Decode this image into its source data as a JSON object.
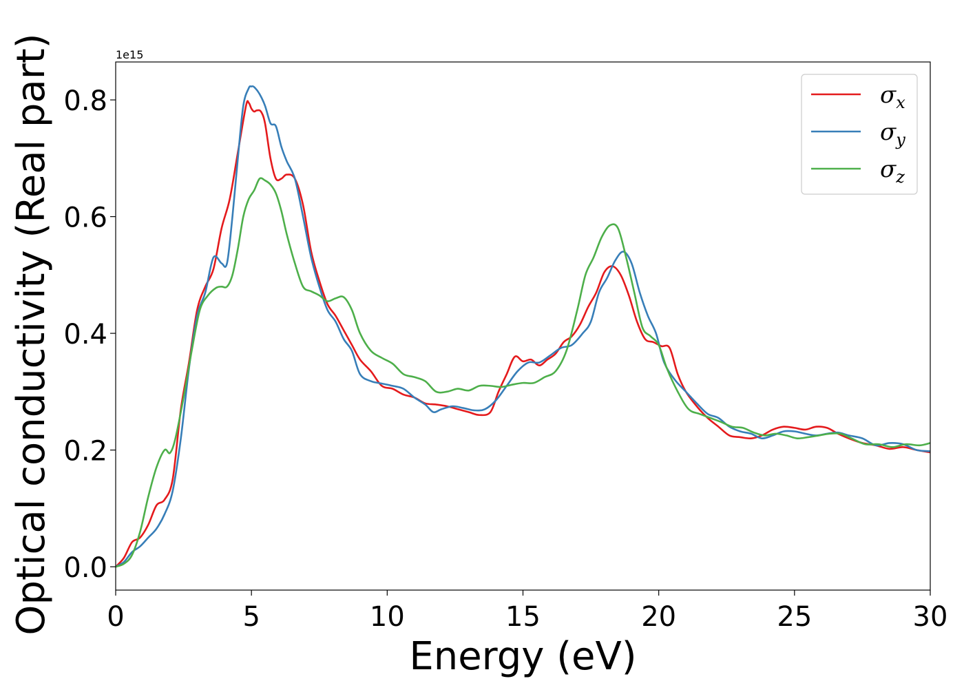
{
  "chart_data": {
    "type": "line",
    "xlabel": "Energy (eV)",
    "ylabel": "Optical conductivity (Real part)",
    "y_offset_text": "1e15",
    "xlim": [
      0,
      30
    ],
    "ylim": [
      -0.04,
      0.865
    ],
    "xticks": [
      0,
      5,
      10,
      15,
      20,
      25,
      30
    ],
    "xtick_labels": [
      "0",
      "5",
      "10",
      "15",
      "20",
      "25",
      "30"
    ],
    "yticks": [
      0.0,
      0.2,
      0.4,
      0.6,
      0.8
    ],
    "ytick_labels": [
      "0.0",
      "0.2",
      "0.4",
      "0.6",
      "0.8"
    ],
    "grid": false,
    "legend_position": "top-right",
    "series": [
      {
        "name": "σx",
        "symbol": "σ",
        "subscript": "x",
        "color": "#e41a1c",
        "x": [
          0,
          0.3,
          0.6,
          0.9,
          1.2,
          1.5,
          1.8,
          2.1,
          2.4,
          2.7,
          3.0,
          3.3,
          3.6,
          3.9,
          4.2,
          4.5,
          4.8,
          4.9,
          5.0,
          5.1,
          5.2,
          5.35,
          5.5,
          5.7,
          5.9,
          6.1,
          6.3,
          6.6,
          6.9,
          7.2,
          7.5,
          7.8,
          8.1,
          8.4,
          8.7,
          9.0,
          9.4,
          9.8,
          10.2,
          10.6,
          11.0,
          11.4,
          11.8,
          12.2,
          12.6,
          13.0,
          13.4,
          13.8,
          14.1,
          14.4,
          14.7,
          15.0,
          15.3,
          15.6,
          15.9,
          16.2,
          16.5,
          16.8,
          17.1,
          17.4,
          17.7,
          18.0,
          18.3,
          18.6,
          18.9,
          19.2,
          19.5,
          19.8,
          20.1,
          20.4,
          20.7,
          21.0,
          21.4,
          21.8,
          22.2,
          22.6,
          23.0,
          23.4,
          23.8,
          24.2,
          24.6,
          25.0,
          25.4,
          25.8,
          26.2,
          26.6,
          27.0,
          27.5,
          28.0,
          28.5,
          29.0,
          29.5,
          30.0
        ],
        "values": [
          0.0,
          0.015,
          0.042,
          0.05,
          0.072,
          0.105,
          0.115,
          0.15,
          0.27,
          0.35,
          0.44,
          0.48,
          0.51,
          0.58,
          0.63,
          0.71,
          0.79,
          0.795,
          0.785,
          0.78,
          0.782,
          0.78,
          0.76,
          0.7,
          0.665,
          0.665,
          0.672,
          0.665,
          0.62,
          0.54,
          0.49,
          0.45,
          0.43,
          0.405,
          0.38,
          0.355,
          0.335,
          0.31,
          0.305,
          0.295,
          0.29,
          0.28,
          0.278,
          0.275,
          0.27,
          0.265,
          0.26,
          0.265,
          0.3,
          0.33,
          0.36,
          0.352,
          0.355,
          0.345,
          0.355,
          0.365,
          0.385,
          0.395,
          0.415,
          0.445,
          0.47,
          0.505,
          0.515,
          0.5,
          0.465,
          0.42,
          0.39,
          0.385,
          0.378,
          0.375,
          0.33,
          0.3,
          0.275,
          0.255,
          0.24,
          0.225,
          0.222,
          0.22,
          0.225,
          0.235,
          0.24,
          0.238,
          0.235,
          0.24,
          0.238,
          0.228,
          0.22,
          0.212,
          0.208,
          0.202,
          0.205,
          0.2,
          0.196
        ]
      },
      {
        "name": "σy",
        "symbol": "σ",
        "subscript": "y",
        "color": "#377eb8",
        "x": [
          0,
          0.3,
          0.6,
          0.9,
          1.2,
          1.5,
          1.8,
          2.1,
          2.4,
          2.7,
          3.0,
          3.3,
          3.6,
          3.9,
          4.1,
          4.3,
          4.5,
          4.7,
          4.9,
          5.0,
          5.1,
          5.3,
          5.5,
          5.7,
          5.9,
          6.1,
          6.3,
          6.6,
          6.9,
          7.2,
          7.5,
          7.8,
          8.1,
          8.4,
          8.7,
          9.0,
          9.4,
          9.8,
          10.2,
          10.6,
          11.0,
          11.4,
          11.7,
          12.0,
          12.4,
          12.8,
          13.2,
          13.6,
          14.0,
          14.4,
          14.8,
          15.2,
          15.6,
          16.0,
          16.4,
          16.8,
          17.2,
          17.5,
          17.8,
          18.1,
          18.4,
          18.7,
          19.0,
          19.3,
          19.6,
          19.9,
          20.2,
          20.6,
          21.0,
          21.4,
          21.8,
          22.2,
          22.6,
          23.0,
          23.4,
          23.8,
          24.2,
          24.6,
          25.0,
          25.4,
          25.8,
          26.2,
          26.6,
          27.0,
          27.5,
          28.0,
          28.5,
          29.0,
          29.5,
          30.0
        ],
        "values": [
          0.0,
          0.008,
          0.025,
          0.035,
          0.05,
          0.065,
          0.09,
          0.13,
          0.22,
          0.34,
          0.43,
          0.47,
          0.53,
          0.52,
          0.52,
          0.6,
          0.7,
          0.79,
          0.82,
          0.823,
          0.822,
          0.81,
          0.79,
          0.76,
          0.755,
          0.72,
          0.695,
          0.665,
          0.6,
          0.53,
          0.48,
          0.44,
          0.42,
          0.39,
          0.37,
          0.33,
          0.318,
          0.314,
          0.31,
          0.305,
          0.29,
          0.278,
          0.265,
          0.27,
          0.275,
          0.272,
          0.268,
          0.27,
          0.285,
          0.31,
          0.335,
          0.35,
          0.35,
          0.362,
          0.375,
          0.38,
          0.4,
          0.42,
          0.47,
          0.495,
          0.525,
          0.54,
          0.52,
          0.47,
          0.43,
          0.4,
          0.35,
          0.32,
          0.3,
          0.28,
          0.262,
          0.255,
          0.24,
          0.232,
          0.228,
          0.22,
          0.225,
          0.232,
          0.232,
          0.228,
          0.225,
          0.228,
          0.23,
          0.225,
          0.22,
          0.208,
          0.212,
          0.21,
          0.2,
          0.198
        ]
      },
      {
        "name": "σz",
        "symbol": "σ",
        "subscript": "z",
        "color": "#4daf4a",
        "x": [
          0,
          0.3,
          0.6,
          0.9,
          1.2,
          1.5,
          1.8,
          2.0,
          2.2,
          2.5,
          2.8,
          3.1,
          3.4,
          3.7,
          3.9,
          4.1,
          4.3,
          4.5,
          4.7,
          4.9,
          5.1,
          5.3,
          5.5,
          5.7,
          5.9,
          6.1,
          6.3,
          6.6,
          6.9,
          7.2,
          7.5,
          7.8,
          8.1,
          8.4,
          8.7,
          9.0,
          9.4,
          9.8,
          10.2,
          10.6,
          11.0,
          11.4,
          11.8,
          12.2,
          12.6,
          13.0,
          13.4,
          13.8,
          14.2,
          14.6,
          15.0,
          15.4,
          15.8,
          16.2,
          16.6,
          17.0,
          17.3,
          17.6,
          17.9,
          18.2,
          18.5,
          18.8,
          19.1,
          19.4,
          19.7,
          20.0,
          20.3,
          20.7,
          21.1,
          21.5,
          21.9,
          22.3,
          22.7,
          23.1,
          23.5,
          23.9,
          24.3,
          24.7,
          25.1,
          25.5,
          25.9,
          26.3,
          26.7,
          27.1,
          27.6,
          28.1,
          28.6,
          29.1,
          29.6,
          30.0
        ],
        "values": [
          0.0,
          0.005,
          0.02,
          0.06,
          0.12,
          0.17,
          0.2,
          0.195,
          0.22,
          0.29,
          0.37,
          0.44,
          0.465,
          0.478,
          0.48,
          0.48,
          0.5,
          0.545,
          0.6,
          0.63,
          0.645,
          0.665,
          0.662,
          0.655,
          0.64,
          0.61,
          0.57,
          0.52,
          0.48,
          0.472,
          0.465,
          0.455,
          0.46,
          0.462,
          0.44,
          0.4,
          0.37,
          0.358,
          0.348,
          0.33,
          0.325,
          0.318,
          0.3,
          0.3,
          0.305,
          0.302,
          0.31,
          0.31,
          0.308,
          0.312,
          0.315,
          0.315,
          0.325,
          0.335,
          0.37,
          0.44,
          0.5,
          0.53,
          0.565,
          0.585,
          0.58,
          0.53,
          0.47,
          0.41,
          0.395,
          0.38,
          0.34,
          0.3,
          0.27,
          0.262,
          0.255,
          0.248,
          0.24,
          0.238,
          0.23,
          0.225,
          0.228,
          0.225,
          0.22,
          0.222,
          0.225,
          0.228,
          0.228,
          0.22,
          0.21,
          0.21,
          0.205,
          0.21,
          0.208,
          0.212
        ]
      }
    ]
  }
}
